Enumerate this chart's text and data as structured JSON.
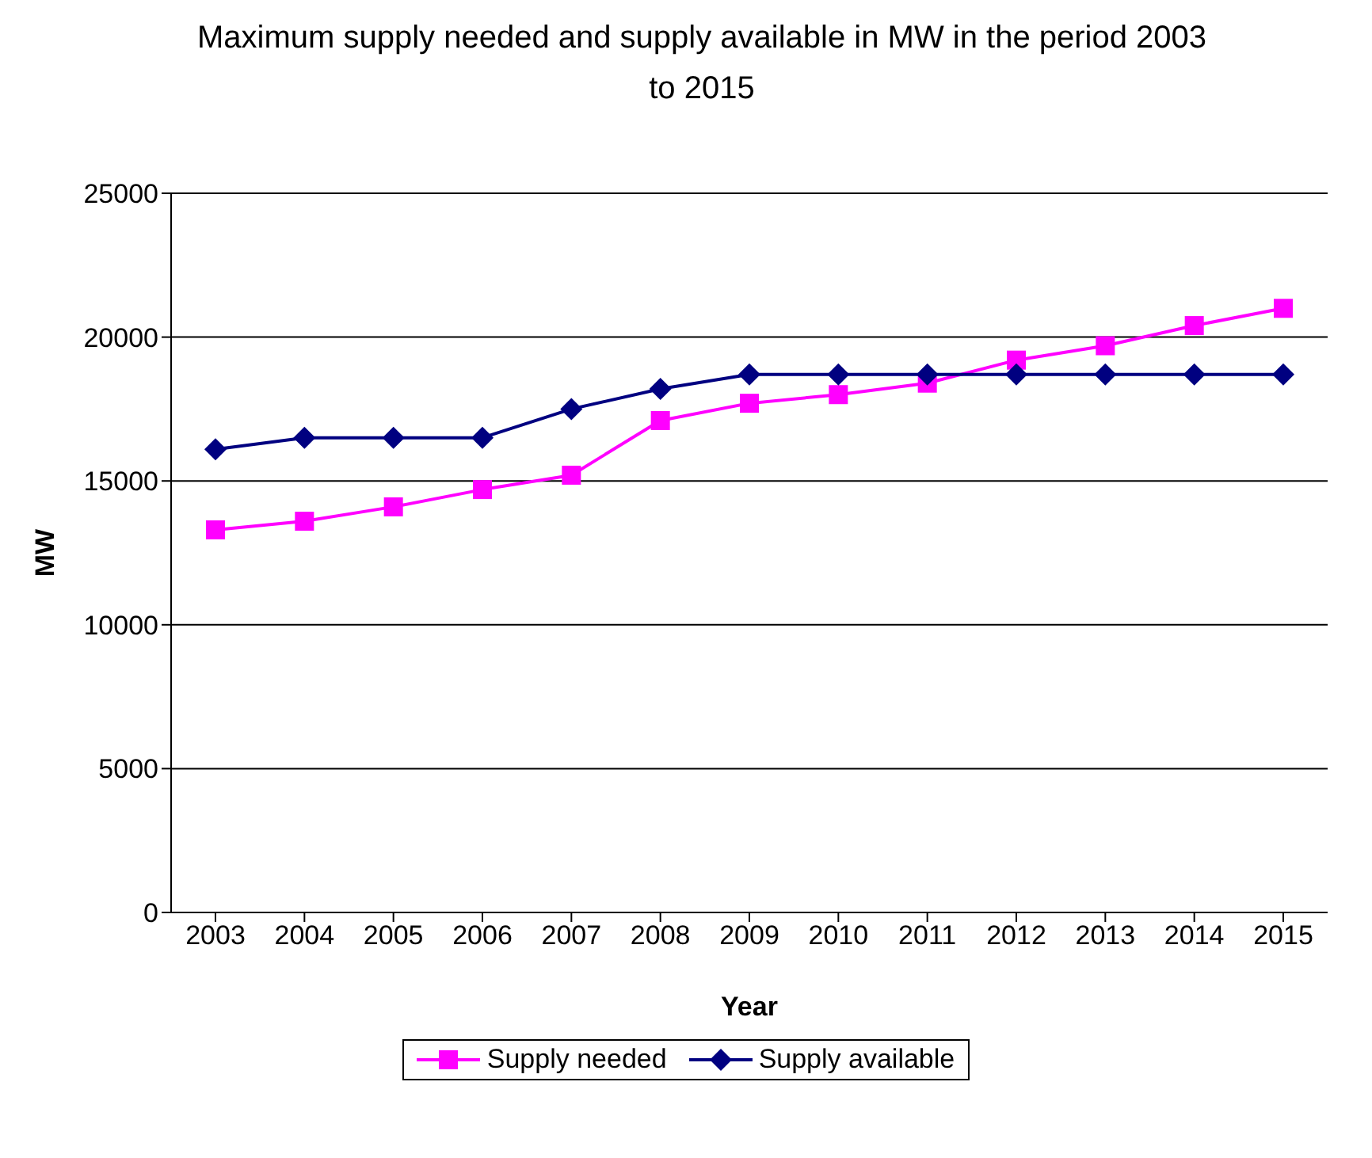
{
  "chart_data": {
    "type": "line",
    "title": "Maximum supply needed and supply available in MW in the period 2003 to 2015",
    "xlabel": "Year",
    "ylabel": "MW",
    "categories": [
      "2003",
      "2004",
      "2005",
      "2006",
      "2007",
      "2008",
      "2009",
      "2010",
      "2011",
      "2012",
      "2013",
      "2014",
      "2015"
    ],
    "series": [
      {
        "name": "Supply needed",
        "color": "#ff00ff",
        "marker": "square",
        "values": [
          13300,
          13600,
          14100,
          14700,
          15200,
          17100,
          17700,
          18000,
          18400,
          19200,
          19700,
          20400,
          21000
        ]
      },
      {
        "name": "Supply available",
        "color": "#000080",
        "marker": "diamond",
        "values": [
          16100,
          16500,
          16500,
          16500,
          17500,
          18200,
          18700,
          18700,
          18700,
          18700,
          18700,
          18700,
          18700
        ]
      }
    ],
    "ylim": [
      0,
      25000
    ],
    "yticks": [
      0,
      5000,
      10000,
      15000,
      20000,
      25000
    ],
    "grid": "y",
    "legend": "bottom"
  }
}
